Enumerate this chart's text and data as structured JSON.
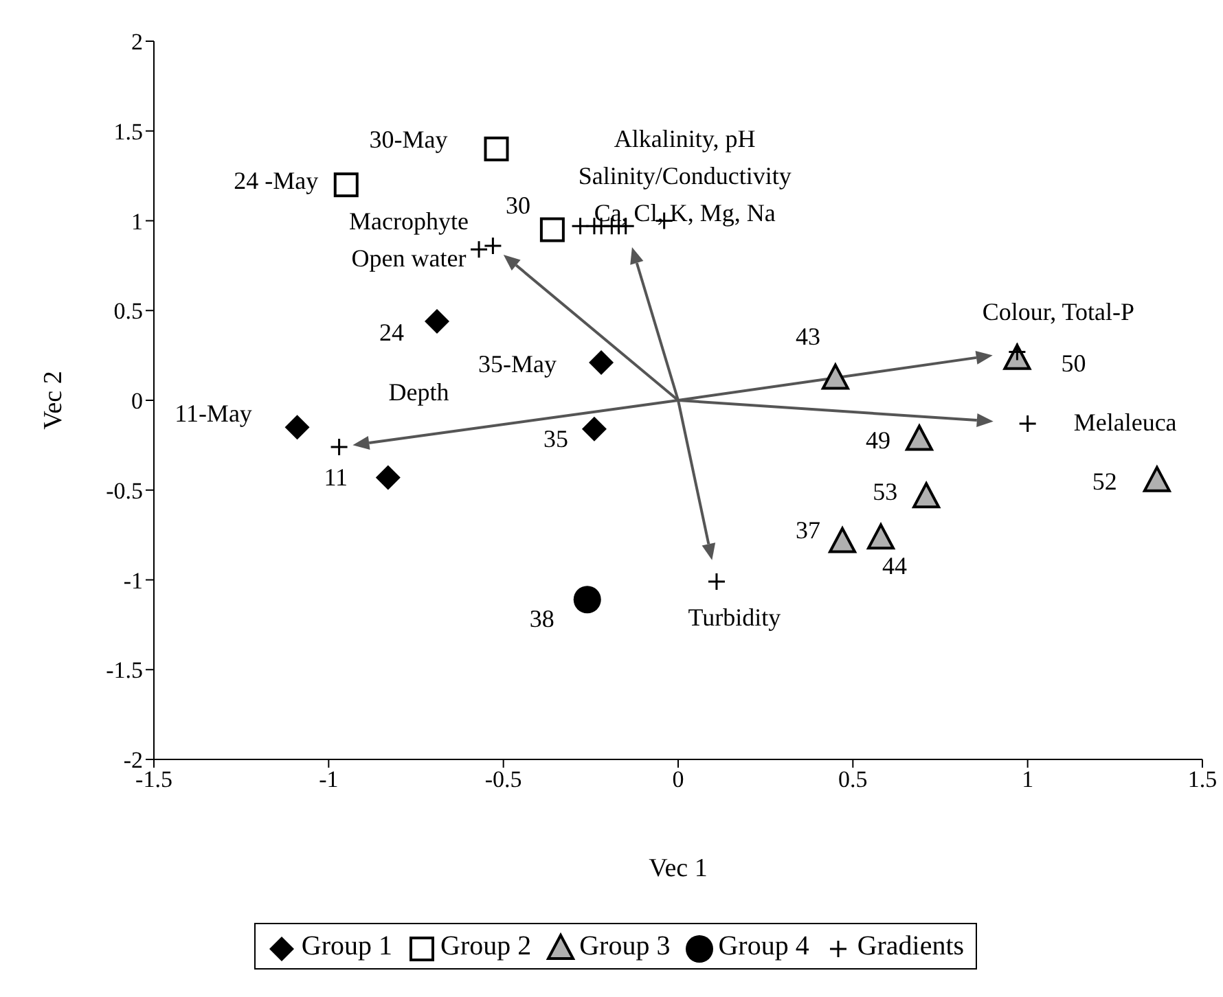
{
  "chart_data": {
    "type": "scatter",
    "xlabel": "Vec 1",
    "ylabel": "Vec 2",
    "xlim": [
      -1.5,
      1.5
    ],
    "xticks": [
      -1.5,
      -1,
      -0.5,
      0,
      0.5,
      1,
      1.5
    ],
    "ylim": [
      -2,
      2
    ],
    "yticks": [
      -2,
      -1.5,
      -1,
      -0.5,
      0,
      0.5,
      1,
      1.5,
      2
    ],
    "grid": false,
    "legend": "bottom",
    "series": [
      {
        "name": "Group 1",
        "type": "scatter",
        "marker": "diamond",
        "color": "#000000",
        "x": [
          -1.09,
          -0.69,
          -0.22,
          -0.24,
          -0.83
        ],
        "values": [
          -0.15,
          0.44,
          0.21,
          -0.16,
          -0.43
        ]
      },
      {
        "name": "Group 2",
        "type": "scatter",
        "marker": "square",
        "color": "#000000",
        "x": [
          -0.95,
          -0.52,
          -0.36
        ],
        "values": [
          1.2,
          1.4,
          0.95
        ]
      },
      {
        "name": "Group 3",
        "marker": "triangle",
        "color": "#000000",
        "x": [
          0.45,
          0.97,
          0.69,
          0.71,
          0.47,
          0.58,
          1.37
        ],
        "values": [
          0.12,
          0.23,
          -0.22,
          -0.54,
          -0.79,
          -0.77,
          -0.45
        ]
      },
      {
        "name": "Group 4",
        "type": "scatter",
        "marker": "circle",
        "color": "#000000",
        "x": [
          -0.26
        ],
        "values": [
          -1.11
        ]
      },
      {
        "name": "Gradients",
        "type": "scatter",
        "marker": "cross",
        "color": "#000000",
        "x": [
          -0.57,
          -0.53,
          -0.28,
          -0.24,
          -0.22,
          -0.19,
          -0.17,
          -0.15,
          -0.04,
          0.97,
          1.0,
          0.11,
          -0.97
        ],
        "values": [
          0.84,
          0.86,
          0.97,
          0.97,
          0.97,
          0.97,
          0.97,
          0.97,
          1.0,
          0.27,
          -0.13,
          -1.01,
          -0.26
        ]
      }
    ],
    "annotations": [
      {
        "text": "11-May",
        "x": -1.09,
        "y": -0.15
      },
      {
        "text": "24",
        "x": -0.69,
        "y": 0.44
      },
      {
        "text": "35-May",
        "x": -0.22,
        "y": 0.21
      },
      {
        "text": "35",
        "x": -0.24,
        "y": -0.16
      },
      {
        "text": "11",
        "x": -0.83,
        "y": -0.43
      },
      {
        "text": "24 -May",
        "x": -0.95,
        "y": 1.2
      },
      {
        "text": "30-May",
        "x": -0.52,
        "y": 1.4
      },
      {
        "text": "30",
        "x": -0.36,
        "y": 0.95
      },
      {
        "text": "43",
        "x": 0.45,
        "y": 0.12
      },
      {
        "text": "50",
        "x": 0.97,
        "y": 0.23
      },
      {
        "text": "49",
        "x": 0.69,
        "y": -0.22
      },
      {
        "text": "53",
        "x": 0.71,
        "y": -0.54
      },
      {
        "text": "37",
        "x": 0.47,
        "y": -0.79
      },
      {
        "text": "44",
        "x": 0.58,
        "y": -0.77
      },
      {
        "text": "52",
        "x": 1.37,
        "y": -0.45
      },
      {
        "text": "38",
        "x": -0.26,
        "y": -1.11
      },
      {
        "text": "Macrophyte\nOpen water",
        "x": -0.57,
        "y": 0.84
      },
      {
        "text": "Alkalinity, pH\nSalinity/Conductivity\nCa, Cl, K, Mg, Na",
        "x": -0.04,
        "y": 1.0
      },
      {
        "text": "Colour, Total-P",
        "x": 0.97,
        "y": 0.27
      },
      {
        "text": "Melaleuca",
        "x": 1.0,
        "y": -0.13
      },
      {
        "text": "Turbidity",
        "x": 0.11,
        "y": -1.01
      },
      {
        "text": "Depth",
        "x": -0.97,
        "y": -0.26
      }
    ]
  }
}
